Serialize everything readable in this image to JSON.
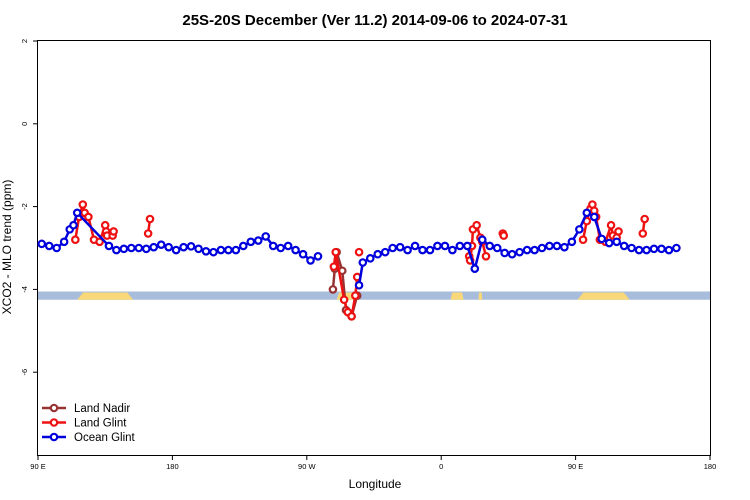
{
  "chart_data": {
    "type": "line",
    "title": "25S-20S December (Ver 11.2)   2014-09-06 to 2024-07-31",
    "xlabel": "Longitude",
    "ylabel": "XCO2 - MLO trend (ppm)",
    "xlim": [
      90,
      450
    ],
    "ylim": [
      -8,
      2
    ],
    "x_ticks": [
      {
        "value": 90,
        "label": "90 E"
      },
      {
        "value": 162,
        "label": "180"
      },
      {
        "value": 234,
        "label": "90 W"
      },
      {
        "value": 306,
        "label": "0"
      },
      {
        "value": 378,
        "label": "90 E"
      },
      {
        "value": 450,
        "label": "180"
      }
    ],
    "y_ticks": [
      {
        "value": 2,
        "label": "2"
      },
      {
        "value": 0,
        "label": "0"
      },
      {
        "value": -2,
        "label": "-2"
      },
      {
        "value": -4,
        "label": "-4"
      },
      {
        "value": -6,
        "label": "-6"
      }
    ],
    "legend_position": "bottom-left",
    "background_bands": {
      "y_range": [
        -4.25,
        -4.05
      ],
      "ocean_color": "#a8bcdc",
      "land_color": "#f8d878",
      "land_spans": [
        [
          111,
          141
        ],
        [
          250,
          261
        ],
        [
          311,
          318
        ],
        [
          326,
          328
        ],
        [
          379,
          407
        ]
      ]
    },
    "series": [
      {
        "name": "Land Nadir",
        "color": "#993333",
        "segments": [
          [
            [
              248,
              -4.0
            ],
            [
              249,
              -3.5
            ],
            [
              250,
              -3.1
            ],
            [
              253,
              -3.55
            ],
            [
              255,
              -4.5
            ],
            [
              258,
              -4.65
            ],
            [
              261,
              -4.15
            ]
          ]
        ]
      },
      {
        "name": "Land Glint",
        "color": "#ee1111",
        "segments": [
          [
            [
              110,
              -2.8
            ],
            [
              112,
              -2.25
            ],
            [
              114,
              -1.95
            ],
            [
              115,
              -2.15
            ],
            [
              117,
              -2.25
            ],
            [
              120,
              -2.8
            ],
            [
              123,
              -2.85
            ],
            [
              126,
              -2.45
            ],
            [
              126.5,
              -2.6
            ],
            [
              127,
              -2.7
            ],
            [
              130,
              -2.7
            ],
            [
              130.5,
              -2.6
            ]
          ],
          [
            [
              149,
              -2.65
            ],
            [
              150,
              -2.3
            ]
          ],
          [
            [
              248.5,
              -3.45
            ],
            [
              249.5,
              -3.1
            ],
            [
              254,
              -4.25
            ],
            [
              256,
              -4.55
            ],
            [
              258,
              -4.65
            ],
            [
              260,
              -4.15
            ],
            [
              261,
              -3.7
            ]
          ],
          [
            [
              262,
              -3.1
            ]
          ],
          [
            [
              321,
              -3.2
            ],
            [
              321.5,
              -3.3
            ],
            [
              322.5,
              -2.95
            ],
            [
              323,
              -2.55
            ],
            [
              325,
              -2.45
            ],
            [
              327,
              -2.75
            ],
            [
              328,
              -2.85
            ],
            [
              330,
              -3.2
            ]
          ],
          [
            [
              339,
              -2.65
            ],
            [
              339.5,
              -2.7
            ]
          ],
          [
            [
              382,
              -2.8
            ],
            [
              384,
              -2.35
            ],
            [
              386,
              -2.05
            ],
            [
              387,
              -1.95
            ],
            [
              388,
              -2.1
            ],
            [
              389,
              -2.25
            ],
            [
              391,
              -2.8
            ],
            [
              394,
              -2.85
            ],
            [
              397,
              -2.45
            ],
            [
              398,
              -2.7
            ],
            [
              400,
              -2.75
            ],
            [
              401,
              -2.6
            ]
          ],
          [
            [
              414,
              -2.65
            ],
            [
              415,
              -2.3
            ]
          ]
        ]
      },
      {
        "name": "Ocean Glint",
        "color": "#0000dd",
        "segments": [
          [
            [
              92,
              -2.9
            ],
            [
              96,
              -2.95
            ],
            [
              100,
              -3.0
            ],
            [
              104,
              -2.85
            ],
            [
              107,
              -2.55
            ],
            [
              109,
              -2.45
            ],
            [
              111,
              -2.15
            ],
            [
              128,
              -2.95
            ],
            [
              132,
              -3.05
            ],
            [
              136,
              -3.02
            ],
            [
              140,
              -3.0
            ],
            [
              144,
              -3.0
            ],
            [
              148,
              -3.02
            ],
            [
              152,
              -2.98
            ],
            [
              156,
              -2.92
            ],
            [
              160,
              -2.98
            ],
            [
              164,
              -3.05
            ],
            [
              168,
              -2.98
            ],
            [
              172,
              -2.96
            ],
            [
              176,
              -3.02
            ],
            [
              180,
              -3.08
            ],
            [
              184,
              -3.1
            ],
            [
              188,
              -3.05
            ],
            [
              192,
              -3.05
            ],
            [
              196,
              -3.05
            ],
            [
              200,
              -2.95
            ],
            [
              204,
              -2.85
            ],
            [
              208,
              -2.82
            ],
            [
              212,
              -2.72
            ],
            [
              216,
              -2.95
            ],
            [
              220,
              -3.0
            ],
            [
              224,
              -2.95
            ],
            [
              228,
              -3.05
            ],
            [
              232,
              -3.15
            ],
            [
              236,
              -3.3
            ],
            [
              240,
              -3.2
            ]
          ],
          [
            [
              262,
              -3.9
            ],
            [
              264,
              -3.35
            ],
            [
              268,
              -3.25
            ],
            [
              272,
              -3.15
            ],
            [
              276,
              -3.1
            ],
            [
              280,
              -3.0
            ],
            [
              284,
              -2.98
            ],
            [
              288,
              -3.05
            ],
            [
              292,
              -2.95
            ],
            [
              296,
              -3.05
            ],
            [
              300,
              -3.05
            ],
            [
              304,
              -2.95
            ],
            [
              308,
              -2.95
            ],
            [
              312,
              -3.05
            ],
            [
              316,
              -2.95
            ],
            [
              320,
              -2.95
            ],
            [
              324,
              -3.5
            ],
            [
              328,
              -2.8
            ],
            [
              332,
              -2.95
            ],
            [
              336,
              -3.0
            ],
            [
              340,
              -3.12
            ],
            [
              344,
              -3.15
            ],
            [
              348,
              -3.1
            ],
            [
              352,
              -3.05
            ],
            [
              356,
              -3.05
            ],
            [
              360,
              -3.0
            ],
            [
              364,
              -2.95
            ],
            [
              368,
              -2.95
            ],
            [
              372,
              -2.98
            ],
            [
              376,
              -2.85
            ],
            [
              380,
              -2.55
            ],
            [
              384,
              -2.15
            ],
            [
              388,
              -2.25
            ],
            [
              392,
              -2.78
            ],
            [
              396,
              -2.88
            ],
            [
              400,
              -2.85
            ],
            [
              404,
              -2.95
            ],
            [
              408,
              -3.0
            ],
            [
              412,
              -3.05
            ],
            [
              416,
              -3.05
            ],
            [
              420,
              -3.02
            ],
            [
              424,
              -3.02
            ],
            [
              428,
              -3.05
            ],
            [
              432,
              -3.0
            ]
          ]
        ]
      }
    ]
  }
}
